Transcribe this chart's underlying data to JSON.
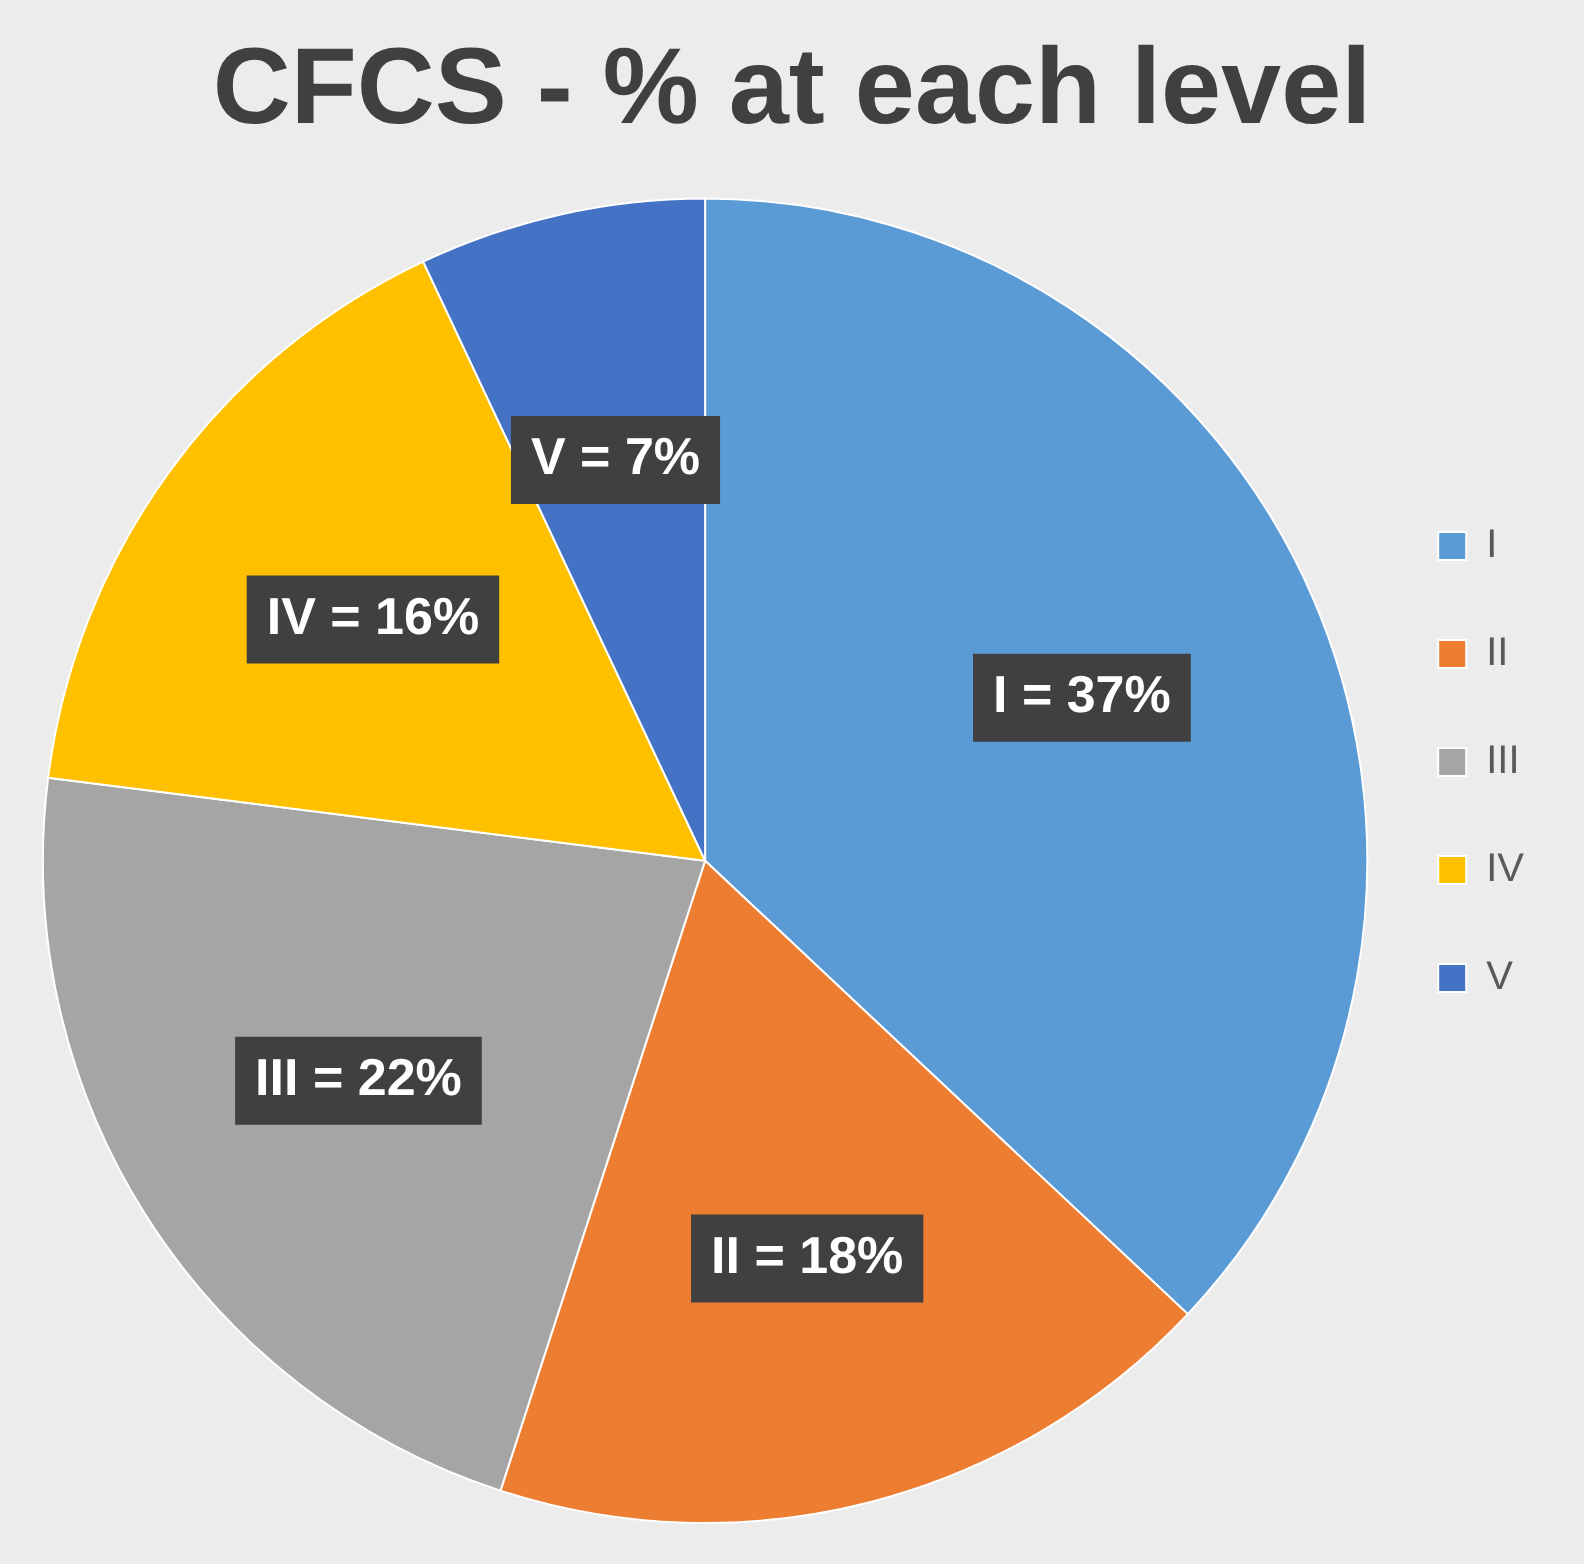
{
  "chart_data": {
    "type": "pie",
    "title": "CFCS - % at each level",
    "categories": [
      "I",
      "II",
      "III",
      "IV",
      "V"
    ],
    "values": [
      37,
      18,
      22,
      16,
      7
    ],
    "colors": [
      "#5b9bd5",
      "#ed7d31",
      "#a5a5a5",
      "#ffc000",
      "#4472c4"
    ],
    "value_labels": [
      "I = 37%",
      "II = 18%",
      "III = 22%",
      "IV = 16%",
      "V = 7%"
    ],
    "legend": "right"
  }
}
